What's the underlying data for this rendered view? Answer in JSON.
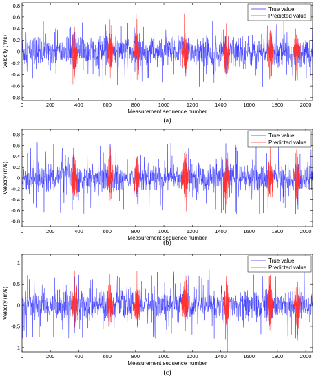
{
  "figure": {
    "panel_labels": [
      "(a)",
      "(b)",
      "(c)"
    ]
  },
  "chart_data": [
    {
      "type": "line",
      "panel": "(a)",
      "xlabel": "Measurement sequence number",
      "ylabel": "Velocity (m/s)",
      "xlim": [
        0,
        2048
      ],
      "ylim": [
        -0.85,
        0.85
      ],
      "xticks": [
        0,
        200,
        400,
        600,
        800,
        1000,
        1200,
        1400,
        1600,
        1800,
        2000
      ],
      "yticks": [
        -0.8,
        -0.6,
        -0.4,
        -0.2,
        0,
        0.2,
        0.4,
        0.6,
        0.8
      ],
      "grid": false,
      "legend": "top-right",
      "series": [
        {
          "name": "True value",
          "color": "#3333ff",
          "amplitude": 0.32,
          "peak": 0.53,
          "trough": -0.62
        },
        {
          "name": "Predicted value",
          "color": "#ff3333",
          "amplitude": 0.3,
          "peak": 0.58,
          "trough": -0.57,
          "segment_centers": [
            370,
            620,
            810,
            1150,
            1440,
            1750,
            1940
          ]
        }
      ]
    },
    {
      "type": "line",
      "panel": "(b)",
      "xlabel": "Measurement sequence number",
      "ylabel": "Velocity (m/s)",
      "xlim": [
        0,
        2048
      ],
      "ylim": [
        -0.9,
        0.9
      ],
      "xticks": [
        0,
        200,
        400,
        600,
        800,
        1000,
        1200,
        1400,
        1600,
        1800,
        2000
      ],
      "yticks": [
        -0.8,
        -0.6,
        -0.4,
        -0.2,
        0,
        0.2,
        0.4,
        0.6,
        0.8
      ],
      "grid": false,
      "legend": "top-right",
      "series": [
        {
          "name": "True value",
          "color": "#3333ff",
          "amplitude": 0.32,
          "peak": 0.66,
          "trough": -0.67
        },
        {
          "name": "Predicted value",
          "color": "#ff3333",
          "amplitude": 0.32,
          "peak": 0.7,
          "trough": -0.55,
          "segment_centers": [
            370,
            620,
            810,
            1150,
            1440,
            1750,
            1940
          ]
        }
      ]
    },
    {
      "type": "line",
      "panel": "(c)",
      "xlabel": "Measurement sequence number",
      "ylabel": "Velocity (m/s)",
      "xlim": [
        0,
        2048
      ],
      "ylim": [
        -1.1,
        1.2
      ],
      "xticks": [
        0,
        200,
        400,
        600,
        800,
        1000,
        1200,
        1400,
        1600,
        1800,
        2000
      ],
      "yticks": [
        -1,
        -0.5,
        0,
        0.5,
        1
      ],
      "grid": false,
      "legend": "top-right",
      "series": [
        {
          "name": "True value",
          "color": "#3333ff",
          "amplitude": 0.42,
          "peak": 0.85,
          "trough": -0.8
        },
        {
          "name": "Predicted value",
          "color": "#ff3333",
          "amplitude": 0.42,
          "peak": 0.88,
          "trough": -0.75,
          "segment_centers": [
            370,
            620,
            810,
            1150,
            1440,
            1750,
            1940
          ]
        }
      ]
    }
  ]
}
